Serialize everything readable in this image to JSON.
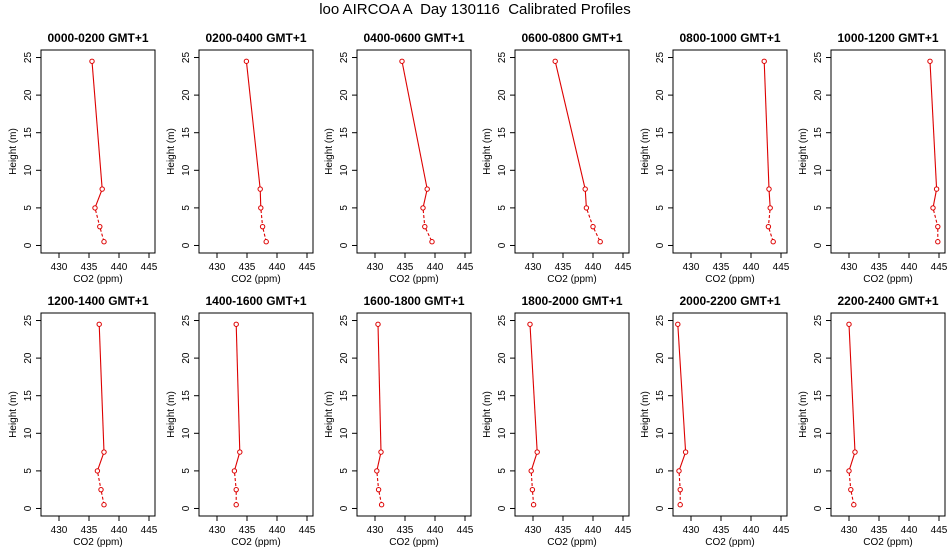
{
  "page_title": "loo AIRCOA A  Day 130116  Calibrated Profiles",
  "style": {
    "line_color": "#dd0000",
    "point_color": "#dd0000",
    "axis_color": "#000000",
    "background": "#ffffff"
  },
  "chart_data": [
    {
      "type": "line",
      "title": "0000-0200 GMT+1",
      "xlabel": "CO2 (ppm)",
      "ylabel": "Height (m)",
      "xlim": [
        427,
        446
      ],
      "ylim": [
        -1,
        26
      ],
      "xticks": [
        430,
        435,
        440,
        445
      ],
      "yticks": [
        0,
        5,
        10,
        15,
        20,
        25
      ],
      "grid": false,
      "series": [
        {
          "x": [
            435.5,
            437.2,
            436.0,
            436.8,
            437.5
          ],
          "y": [
            24.5,
            7.5,
            5.0,
            2.5,
            0.5
          ],
          "dashed_segments": [
            2,
            3
          ]
        }
      ]
    },
    {
      "type": "line",
      "title": "0200-0400 GMT+1",
      "xlabel": "CO2 (ppm)",
      "ylabel": "Height (m)",
      "xlim": [
        427,
        446
      ],
      "ylim": [
        -1,
        26
      ],
      "xticks": [
        430,
        435,
        440,
        445
      ],
      "yticks": [
        0,
        5,
        10,
        15,
        20,
        25
      ],
      "grid": false,
      "series": [
        {
          "x": [
            434.9,
            437.2,
            437.3,
            437.6,
            438.2
          ],
          "y": [
            24.5,
            7.5,
            5.0,
            2.5,
            0.5
          ],
          "dashed_segments": [
            2,
            3
          ]
        }
      ]
    },
    {
      "type": "line",
      "title": "0400-0600 GMT+1",
      "xlabel": "CO2 (ppm)",
      "ylabel": "Height (m)",
      "xlim": [
        427,
        446
      ],
      "ylim": [
        -1,
        26
      ],
      "xticks": [
        430,
        435,
        440,
        445
      ],
      "yticks": [
        0,
        5,
        10,
        15,
        20,
        25
      ],
      "grid": false,
      "series": [
        {
          "x": [
            434.5,
            438.7,
            438.0,
            438.3,
            439.5
          ],
          "y": [
            24.5,
            7.5,
            5.0,
            2.5,
            0.5
          ],
          "dashed_segments": [
            2,
            3
          ]
        }
      ]
    },
    {
      "type": "line",
      "title": "0600-0800 GMT+1",
      "xlabel": "CO2 (ppm)",
      "ylabel": "Height (m)",
      "xlim": [
        427,
        446
      ],
      "ylim": [
        -1,
        26
      ],
      "xticks": [
        430,
        435,
        440,
        445
      ],
      "yticks": [
        0,
        5,
        10,
        15,
        20,
        25
      ],
      "grid": false,
      "series": [
        {
          "x": [
            433.7,
            438.7,
            438.9,
            440.0,
            441.2
          ],
          "y": [
            24.5,
            7.5,
            5.0,
            2.5,
            0.5
          ],
          "dashed_segments": [
            2,
            3
          ]
        }
      ]
    },
    {
      "type": "line",
      "title": "0800-1000 GMT+1",
      "xlabel": "CO2 (ppm)",
      "ylabel": "Height (m)",
      "xlim": [
        427,
        446
      ],
      "ylim": [
        -1,
        26
      ],
      "xticks": [
        430,
        435,
        440,
        445
      ],
      "yticks": [
        0,
        5,
        10,
        15,
        20,
        25
      ],
      "grid": false,
      "series": [
        {
          "x": [
            442.2,
            443.0,
            443.2,
            442.9,
            443.7
          ],
          "y": [
            24.5,
            7.5,
            5.0,
            2.5,
            0.5
          ],
          "dashed_segments": [
            2,
            3
          ]
        }
      ]
    },
    {
      "type": "line",
      "title": "1000-1200 GMT+1",
      "xlabel": "CO2 (ppm)",
      "ylabel": "Height (m)",
      "xlim": [
        427,
        446
      ],
      "ylim": [
        -1,
        26
      ],
      "xticks": [
        430,
        435,
        440,
        445
      ],
      "yticks": [
        0,
        5,
        10,
        15,
        20,
        25
      ],
      "grid": false,
      "series": [
        {
          "x": [
            443.5,
            444.6,
            444.0,
            444.8,
            444.8
          ],
          "y": [
            24.5,
            7.5,
            5.0,
            2.5,
            0.5
          ],
          "dashed_segments": [
            2,
            3
          ]
        }
      ]
    },
    {
      "type": "line",
      "title": "1200-1400 GMT+1",
      "xlabel": "CO2 (ppm)",
      "ylabel": "Height (m)",
      "xlim": [
        427,
        446
      ],
      "ylim": [
        -1,
        26
      ],
      "xticks": [
        430,
        435,
        440,
        445
      ],
      "yticks": [
        0,
        5,
        10,
        15,
        20,
        25
      ],
      "grid": false,
      "series": [
        {
          "x": [
            436.7,
            437.5,
            436.4,
            437.0,
            437.5
          ],
          "y": [
            24.5,
            7.5,
            5.0,
            2.5,
            0.5
          ],
          "dashed_segments": [
            2,
            3
          ]
        }
      ]
    },
    {
      "type": "line",
      "title": "1400-1600 GMT+1",
      "xlabel": "CO2 (ppm)",
      "ylabel": "Height (m)",
      "xlim": [
        427,
        446
      ],
      "ylim": [
        -1,
        26
      ],
      "xticks": [
        430,
        435,
        440,
        445
      ],
      "yticks": [
        0,
        5,
        10,
        15,
        20,
        25
      ],
      "grid": false,
      "series": [
        {
          "x": [
            433.2,
            433.8,
            432.9,
            433.2,
            433.2
          ],
          "y": [
            24.5,
            7.5,
            5.0,
            2.5,
            0.5
          ],
          "dashed_segments": [
            2,
            3
          ]
        }
      ]
    },
    {
      "type": "line",
      "title": "1600-1800 GMT+1",
      "xlabel": "CO2 (ppm)",
      "ylabel": "Height (m)",
      "xlim": [
        427,
        446
      ],
      "ylim": [
        -1,
        26
      ],
      "xticks": [
        430,
        435,
        440,
        445
      ],
      "yticks": [
        0,
        5,
        10,
        15,
        20,
        25
      ],
      "grid": false,
      "series": [
        {
          "x": [
            430.5,
            431.0,
            430.3,
            430.6,
            431.1
          ],
          "y": [
            24.5,
            7.5,
            5.0,
            2.5,
            0.5
          ],
          "dashed_segments": [
            2,
            3
          ]
        }
      ]
    },
    {
      "type": "line",
      "title": "1800-2000 GMT+1",
      "xlabel": "CO2 (ppm)",
      "ylabel": "Height (m)",
      "xlim": [
        427,
        446
      ],
      "ylim": [
        -1,
        26
      ],
      "xticks": [
        430,
        435,
        440,
        445
      ],
      "yticks": [
        0,
        5,
        10,
        15,
        20,
        25
      ],
      "grid": false,
      "series": [
        {
          "x": [
            429.5,
            430.7,
            429.7,
            429.9,
            430.1
          ],
          "y": [
            24.5,
            7.5,
            5.0,
            2.5,
            0.5
          ],
          "dashed_segments": [
            2,
            3
          ]
        }
      ]
    },
    {
      "type": "line",
      "title": "2000-2200 GMT+1",
      "xlabel": "CO2 (ppm)",
      "ylabel": "Height (m)",
      "xlim": [
        427,
        446
      ],
      "ylim": [
        -1,
        26
      ],
      "xticks": [
        430,
        435,
        440,
        445
      ],
      "yticks": [
        0,
        5,
        10,
        15,
        20,
        25
      ],
      "grid": false,
      "series": [
        {
          "x": [
            427.8,
            429.1,
            428.0,
            428.2,
            428.2
          ],
          "y": [
            24.5,
            7.5,
            5.0,
            2.5,
            0.5
          ],
          "dashed_segments": [
            2,
            3
          ]
        }
      ]
    },
    {
      "type": "line",
      "title": "2200-2400 GMT+1",
      "xlabel": "CO2 (ppm)",
      "ylabel": "Height (m)",
      "xlim": [
        427,
        446
      ],
      "ylim": [
        -1,
        26
      ],
      "xticks": [
        430,
        435,
        440,
        445
      ],
      "yticks": [
        0,
        5,
        10,
        15,
        20,
        25
      ],
      "grid": false,
      "series": [
        {
          "x": [
            430.0,
            431.0,
            430.0,
            430.3,
            430.8
          ],
          "y": [
            24.5,
            7.5,
            5.0,
            2.5,
            0.5
          ],
          "dashed_segments": [
            2,
            3
          ]
        }
      ]
    }
  ]
}
